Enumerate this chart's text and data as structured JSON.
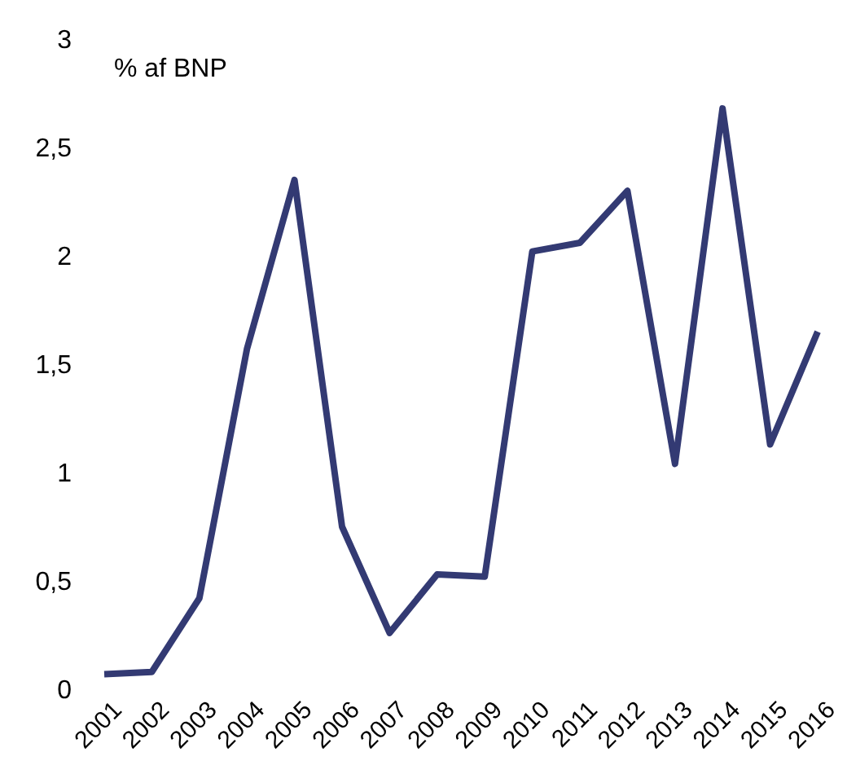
{
  "chart_data": {
    "type": "line",
    "ylabel": "% af BNP",
    "categories": [
      "2001",
      "2002",
      "2003",
      "2004",
      "2005",
      "2006",
      "2007",
      "2008",
      "2009",
      "2010",
      "2011",
      "2012",
      "2013",
      "2014",
      "2015",
      "2016"
    ],
    "series": [
      {
        "color": "#333a73",
        "values": [
          0.07,
          0.08,
          0.42,
          1.57,
          2.35,
          0.75,
          0.26,
          0.53,
          0.52,
          2.02,
          2.06,
          2.3,
          1.04,
          2.68,
          1.13,
          1.65
        ]
      }
    ],
    "ylim": [
      0,
      3
    ],
    "yticks": [
      0,
      {
        "value": 0.5,
        "label": "0,5"
      },
      1,
      {
        "value": 1.5,
        "label": "1,5"
      },
      2,
      {
        "value": 2.5,
        "label": "2,5"
      },
      3
    ],
    "grid": false,
    "legend": false,
    "marker": "none",
    "line_style": "solid"
  }
}
